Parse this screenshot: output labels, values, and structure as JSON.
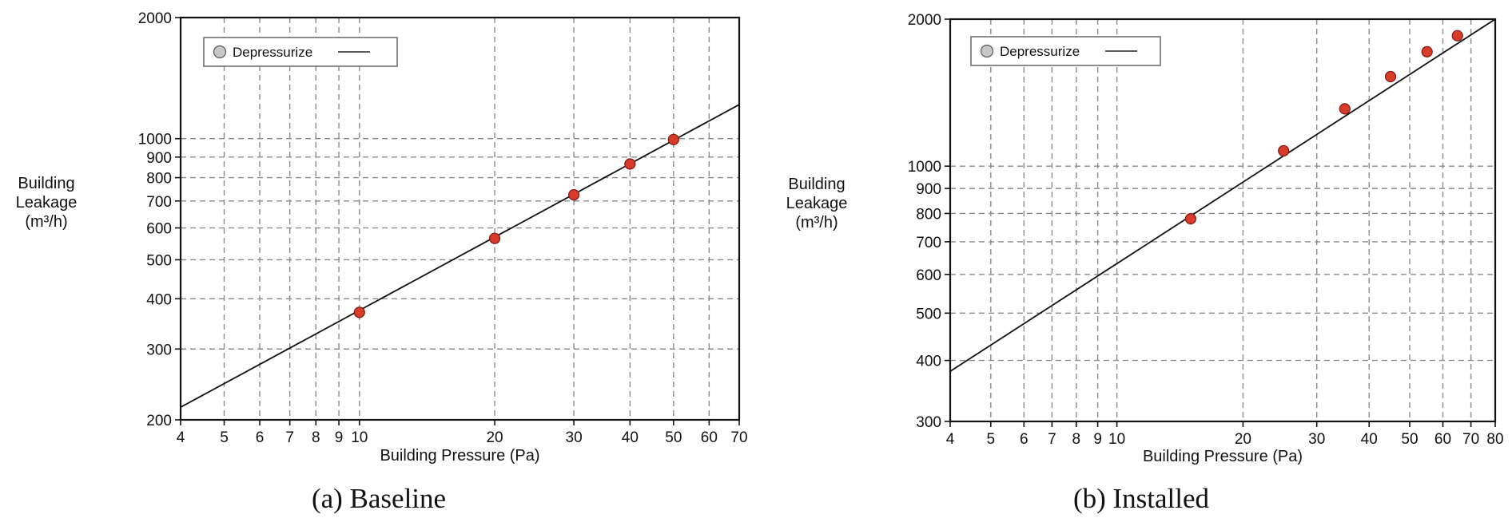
{
  "chart_data": [
    {
      "type": "scatter",
      "caption": "(a) Baseline",
      "xlabel": "Building Pressure (Pa)",
      "ylabel": [
        "Building",
        "Leakage",
        "(m³/h)"
      ],
      "xscale": "log",
      "yscale": "log",
      "xlim": [
        4,
        70
      ],
      "ylim": [
        200,
        2000
      ],
      "xticks": [
        4,
        5,
        6,
        7,
        8,
        9,
        10,
        20,
        30,
        40,
        50,
        60,
        70
      ],
      "yticks": [
        200,
        300,
        400,
        500,
        600,
        700,
        800,
        900,
        1000,
        2000
      ],
      "grid": true,
      "legend": {
        "position": "top-left",
        "label": "Depressurize"
      },
      "series": [
        {
          "name": "Depressurize",
          "x": [
            10,
            20,
            30,
            40,
            50
          ],
          "y": [
            370,
            565,
            725,
            865,
            995
          ]
        }
      ],
      "fit_line": {
        "x": [
          4,
          70
        ],
        "y": [
          215,
          1215
        ]
      }
    },
    {
      "type": "scatter",
      "caption": "(b) Installed",
      "xlabel": "Building Pressure (Pa)",
      "ylabel": [
        "Building",
        "Leakage",
        "(m³/h)"
      ],
      "xscale": "log",
      "yscale": "log",
      "xlim": [
        4,
        80
      ],
      "ylim": [
        300,
        2000
      ],
      "xticks": [
        4,
        5,
        6,
        7,
        8,
        9,
        10,
        20,
        30,
        40,
        50,
        60,
        70,
        80
      ],
      "yticks": [
        300,
        400,
        500,
        600,
        700,
        800,
        900,
        1000,
        2000
      ],
      "grid": true,
      "legend": {
        "position": "top-left",
        "label": "Depressurize"
      },
      "series": [
        {
          "name": "Depressurize",
          "x": [
            15,
            25,
            35,
            45,
            55,
            65
          ],
          "y": [
            780,
            1075,
            1310,
            1525,
            1715,
            1850
          ]
        }
      ],
      "fit_line": {
        "x": [
          4,
          80
        ],
        "y": [
          380,
          2000
        ]
      }
    }
  ],
  "colors": {
    "marker_fill": "#d93b2b",
    "marker_stroke": "#7a1a12",
    "line": "#111111",
    "grid": "#8a8a8a",
    "legend_marker": "#c8c8c8"
  }
}
